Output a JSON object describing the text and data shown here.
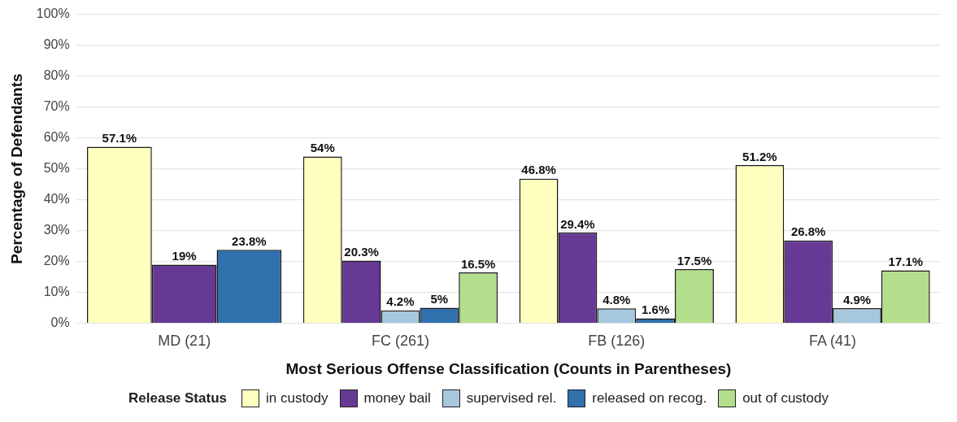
{
  "chart_data": {
    "type": "bar",
    "xlabel": "Most Serious Offense Classification (Counts in Parentheses)",
    "ylabel": "Percentage of Defendants",
    "legend_title": "Release Status",
    "legend": "bottom",
    "grid": "y",
    "categories": [
      "MD (21)",
      "FC (261)",
      "FB (126)",
      "FA (41)"
    ],
    "ylim": [
      0,
      100
    ],
    "yticks": [
      {
        "value": 0,
        "label": "0%"
      },
      {
        "value": 10,
        "label": "10%"
      },
      {
        "value": 20,
        "label": "20%"
      },
      {
        "value": 30,
        "label": "30%"
      },
      {
        "value": 40,
        "label": "40%"
      },
      {
        "value": 50,
        "label": "50%"
      },
      {
        "value": 60,
        "label": "60%"
      },
      {
        "value": 70,
        "label": "70%"
      },
      {
        "value": 80,
        "label": "80%"
      },
      {
        "value": 90,
        "label": "90%"
      },
      {
        "value": 100,
        "label": "100%"
      }
    ],
    "series": [
      {
        "name": "in custody",
        "color": "#ffffbf",
        "values": [
          57.1,
          54,
          46.8,
          51.2
        ],
        "value_labels": [
          "57.1%",
          "54%",
          "46.8%",
          "51.2%"
        ]
      },
      {
        "name": "money bail",
        "color": "#663a94",
        "values": [
          19,
          20.3,
          29.4,
          26.8
        ],
        "value_labels": [
          "19%",
          "20.3%",
          "29.4%",
          "26.8%"
        ]
      },
      {
        "name": "supervised rel.",
        "color": "#a7c7df",
        "values": [
          null,
          4.2,
          4.8,
          4.9
        ],
        "value_labels": [
          null,
          "4.2%",
          "4.8%",
          "4.9%"
        ]
      },
      {
        "name": "released on recog.",
        "color": "#2f70ad",
        "values": [
          23.8,
          5,
          1.6,
          null
        ],
        "value_labels": [
          "23.8%",
          "5%",
          "1.6%",
          null
        ]
      },
      {
        "name": "out of custody",
        "color": "#b3de8c",
        "values": [
          null,
          16.5,
          17.5,
          17.1
        ],
        "value_labels": [
          null,
          "16.5%",
          "17.5%",
          "17.1%"
        ]
      }
    ]
  }
}
